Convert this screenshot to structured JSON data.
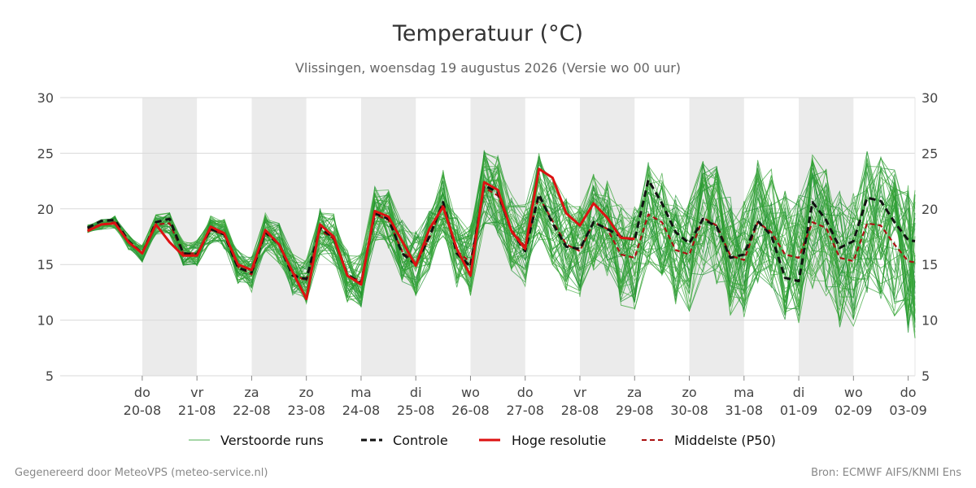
{
  "chart_data": {
    "type": "line",
    "title": "Temperatuur (°C)",
    "subtitle": "Vlissingen, woensdag 19 augustus 2026 (Versie wo 00 uur)",
    "ylim": [
      5,
      30
    ],
    "yticks": [
      5,
      10,
      15,
      20,
      25,
      30
    ],
    "x_range_hours": [
      0,
      375
    ],
    "grid": true,
    "legend_position": "bottom",
    "day_ticks": [
      {
        "hour": 36,
        "day": "do",
        "date": "20-08"
      },
      {
        "hour": 60,
        "day": "vr",
        "date": "21-08"
      },
      {
        "hour": 84,
        "day": "za",
        "date": "22-08"
      },
      {
        "hour": 108,
        "day": "zo",
        "date": "23-08"
      },
      {
        "hour": 132,
        "day": "ma",
        "date": "24-08"
      },
      {
        "hour": 156,
        "day": "di",
        "date": "25-08"
      },
      {
        "hour": 180,
        "day": "wo",
        "date": "26-08"
      },
      {
        "hour": 204,
        "day": "do",
        "date": "27-08"
      },
      {
        "hour": 228,
        "day": "vr",
        "date": "28-08"
      },
      {
        "hour": 252,
        "day": "za",
        "date": "29-08"
      },
      {
        "hour": 276,
        "day": "zo",
        "date": "30-08"
      },
      {
        "hour": 300,
        "day": "ma",
        "date": "31-08"
      },
      {
        "hour": 324,
        "day": "di",
        "date": "01-09"
      },
      {
        "hour": 348,
        "day": "wo",
        "date": "02-09"
      },
      {
        "hour": 372,
        "day": "do",
        "date": "03-09"
      }
    ],
    "shaded_days": [
      [
        36,
        60
      ],
      [
        84,
        108
      ],
      [
        132,
        156
      ],
      [
        180,
        204
      ],
      [
        228,
        252
      ],
      [
        276,
        300
      ],
      [
        324,
        348
      ]
    ],
    "series": [
      {
        "name": "Controle",
        "color": "#111111",
        "style": "dashed",
        "x": [
          12,
          18,
          24,
          30,
          36,
          42,
          48,
          54,
          60,
          66,
          72,
          78,
          84,
          90,
          96,
          102,
          108,
          114,
          120,
          126,
          132,
          138,
          144,
          150,
          156,
          162,
          168,
          174,
          180,
          186,
          192,
          198,
          204,
          210,
          216,
          222,
          228,
          234,
          240,
          246,
          252,
          258,
          264,
          270,
          276,
          282,
          288,
          294,
          300,
          306,
          312,
          318,
          324,
          330,
          336,
          342,
          348,
          354,
          360,
          366,
          372,
          375
        ],
        "y": [
          18.3,
          18.9,
          19.0,
          17.1,
          16.0,
          18.8,
          19.1,
          16.0,
          15.9,
          18.2,
          17.7,
          14.7,
          14.3,
          17.9,
          16.8,
          14.0,
          13.7,
          18.3,
          17.4,
          14.1,
          13.3,
          19.6,
          19.1,
          16.0,
          15.0,
          17.5,
          20.6,
          16.0,
          14.8,
          22.1,
          21.5,
          18.0,
          16.2,
          21.3,
          18.7,
          16.6,
          16.4,
          18.8,
          18.2,
          17.5,
          17.2,
          22.6,
          20.5,
          17.9,
          16.9,
          19.1,
          18.4,
          15.6,
          15.9,
          18.9,
          17.6,
          13.8,
          13.5,
          20.6,
          19.0,
          16.5,
          17.1,
          21.0,
          20.7,
          18.8,
          17.2,
          17.1
        ]
      },
      {
        "name": "Hoge resolutie",
        "color": "#dd1111",
        "style": "solid",
        "x": [
          12,
          18,
          24,
          30,
          36,
          42,
          48,
          54,
          60,
          66,
          72,
          78,
          84,
          90,
          96,
          102,
          108,
          114,
          120,
          126,
          132,
          138,
          144,
          150,
          156,
          162,
          168,
          174,
          180,
          186,
          192,
          198,
          204,
          210,
          216,
          222,
          228,
          234,
          240,
          246,
          252
        ],
        "y": [
          18.0,
          18.6,
          18.7,
          17.0,
          16.0,
          18.6,
          17.0,
          15.8,
          15.8,
          18.4,
          17.8,
          15.0,
          14.5,
          18.1,
          16.8,
          14.3,
          11.9,
          18.6,
          17.5,
          14.0,
          13.2,
          19.8,
          19.3,
          17.1,
          14.9,
          18.2,
          20.2,
          16.4,
          14.0,
          22.4,
          21.7,
          18.0,
          16.4,
          23.6,
          22.8,
          19.6,
          18.5,
          20.5,
          19.2,
          17.4,
          17.3
        ]
      },
      {
        "name": "Middelste (P50)",
        "color": "#aa1111",
        "style": "dashed",
        "x": [
          12,
          18,
          24,
          30,
          36,
          42,
          48,
          54,
          60,
          66,
          72,
          78,
          84,
          90,
          96,
          102,
          108,
          114,
          120,
          126,
          132,
          138,
          144,
          150,
          156,
          162,
          168,
          174,
          180,
          186,
          192,
          198,
          204,
          210,
          216,
          222,
          228,
          234,
          240,
          246,
          252,
          258,
          264,
          270,
          276,
          282,
          288,
          294,
          300,
          306,
          312,
          318,
          324,
          330,
          336,
          342,
          348,
          354,
          360,
          366,
          372,
          375
        ],
        "y": [
          18.2,
          18.6,
          18.8,
          17.0,
          16.0,
          18.6,
          18.7,
          16.0,
          16.0,
          18.1,
          17.7,
          14.8,
          14.1,
          17.9,
          16.9,
          14.2,
          13.5,
          18.1,
          17.3,
          14.0,
          13.5,
          19.5,
          19.0,
          16.2,
          15.1,
          17.4,
          20.5,
          16.2,
          15.2,
          21.9,
          21.2,
          18.1,
          16.6,
          21.1,
          18.9,
          16.8,
          16.2,
          18.8,
          18.2,
          15.9,
          15.6,
          19.5,
          18.8,
          16.3,
          15.9,
          19.2,
          18.5,
          15.8,
          15.4,
          18.8,
          17.9,
          15.9,
          15.6,
          18.8,
          18.3,
          15.6,
          15.3,
          18.7,
          18.5,
          16.8,
          15.3,
          15.2
        ]
      }
    ],
    "ensemble": {
      "name": "Verstoorde runs",
      "color": "#2ca02c",
      "members": 51
    },
    "legend": [
      {
        "key": "ensemble",
        "label": "Verstoorde runs"
      },
      {
        "key": "control",
        "label": "Controle"
      },
      {
        "key": "hires",
        "label": "Hoge resolutie"
      },
      {
        "key": "median",
        "label": "Middelste (P50)"
      }
    ]
  },
  "footer": {
    "left": "Gegenereerd door MeteoVPS (meteo-service.nl)",
    "right": "Bron: ECMWF AIFS/KNMI Ens"
  }
}
